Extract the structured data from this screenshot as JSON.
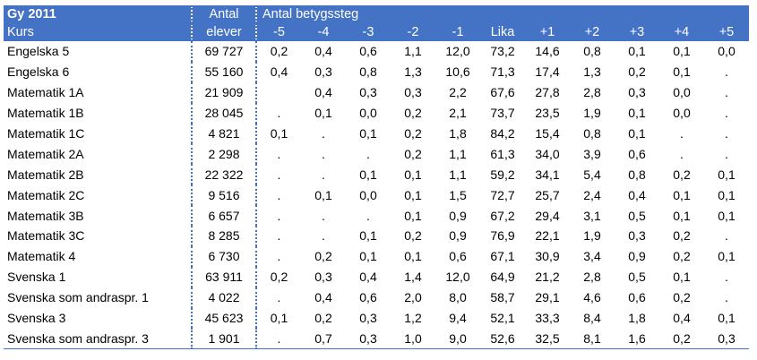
{
  "header": {
    "title": "Gy 2011",
    "kurs_label": "Kurs",
    "antal_line1": "Antal",
    "antal_line2": "elever",
    "group_label": "Antal betygssteg",
    "steps": [
      "-5",
      "-4",
      "-3",
      "-2",
      "-1",
      "Lika",
      "+1",
      "+2",
      "+3",
      "+4",
      "+5"
    ]
  },
  "rows": [
    {
      "kurs": "Engelska 5",
      "elever": "69 727",
      "v": [
        "0,2",
        "0,4",
        "0,6",
        "1,1",
        "12,0",
        "73,2",
        "14,6",
        "0,8",
        "0,1",
        "0,1",
        "0,0"
      ]
    },
    {
      "kurs": "Engelska 6",
      "elever": "55 160",
      "v": [
        "0,4",
        "0,3",
        "0,8",
        "1,3",
        "10,6",
        "71,3",
        "17,4",
        "1,3",
        "0,2",
        "0,1",
        "."
      ]
    },
    {
      "kurs": "Matematik 1A",
      "elever": "21 909",
      "v": [
        "",
        "0,4",
        "0,3",
        "0,3",
        "2,2",
        "67,6",
        "27,8",
        "2,8",
        "0,3",
        "0,0",
        "."
      ]
    },
    {
      "kurs": "Matematik 1B",
      "elever": "28 045",
      "v": [
        ".",
        "0,1",
        "0,0",
        "0,2",
        "2,1",
        "73,7",
        "23,5",
        "1,9",
        "0,1",
        "0,0",
        "."
      ]
    },
    {
      "kurs": "Matematik 1C",
      "elever": "4 821",
      "v": [
        "0,1",
        ".",
        "0,1",
        "0,2",
        "1,8",
        "84,2",
        "15,4",
        "0,8",
        "0,1",
        ".",
        "."
      ]
    },
    {
      "kurs": "Matematik 2A",
      "elever": "2 298",
      "v": [
        ".",
        ".",
        ".",
        "0,2",
        "1,1",
        "61,3",
        "34,0",
        "3,9",
        "0,6",
        ".",
        "."
      ]
    },
    {
      "kurs": "Matematik 2B",
      "elever": "22 322",
      "v": [
        ".",
        ".",
        "0,1",
        "0,1",
        "1,1",
        "59,2",
        "34,1",
        "5,4",
        "0,8",
        "0,2",
        "0,1"
      ]
    },
    {
      "kurs": "Matematik 2C",
      "elever": "9 516",
      "v": [
        ".",
        "0,1",
        "0,0",
        "0,1",
        "1,5",
        "72,7",
        "25,7",
        "2,4",
        "0,4",
        "0,1",
        "0,1"
      ]
    },
    {
      "kurs": "Matematik 3B",
      "elever": "6 657",
      "v": [
        ".",
        ".",
        ".",
        "0,1",
        "0,9",
        "67,2",
        "29,4",
        "3,1",
        "0,5",
        "0,1",
        "0,1"
      ]
    },
    {
      "kurs": "Matematik 3C",
      "elever": "8 285",
      "v": [
        ".",
        ".",
        "0,1",
        "0,2",
        "0,9",
        "76,9",
        "22,1",
        "1,9",
        "0,3",
        "0,2",
        "."
      ]
    },
    {
      "kurs": "Matematik 4",
      "elever": "6 730",
      "v": [
        ".",
        "0,2",
        "0,1",
        "0,1",
        "0,6",
        "67,1",
        "30,9",
        "3,4",
        "0,9",
        "0,2",
        "0,1"
      ]
    },
    {
      "kurs": "Svenska 1",
      "elever": "63 911",
      "v": [
        "0,2",
        "0,3",
        "0,4",
        "1,4",
        "12,0",
        "64,9",
        "21,2",
        "2,8",
        "0,5",
        "0,1",
        "."
      ]
    },
    {
      "kurs": "Svenska som andraspr. 1",
      "elever": "4 022",
      "v": [
        ".",
        "0,4",
        "0,6",
        "2,0",
        "8,0",
        "58,7",
        "29,1",
        "4,6",
        "0,6",
        "0,2",
        "."
      ]
    },
    {
      "kurs": "Svenska 3",
      "elever": "45 623",
      "v": [
        "0,1",
        "0,2",
        "0,3",
        "1,2",
        "9,4",
        "52,1",
        "33,3",
        "8,4",
        "1,8",
        "0,4",
        "0,1"
      ]
    },
    {
      "kurs": "Svenska som andraspr. 3",
      "elever": "1 901",
      "v": [
        ".",
        "0,7",
        "0,3",
        "1,0",
        "9,0",
        "52,6",
        "32,5",
        "8,1",
        "1,6",
        "0,2",
        "0,3"
      ]
    }
  ]
}
